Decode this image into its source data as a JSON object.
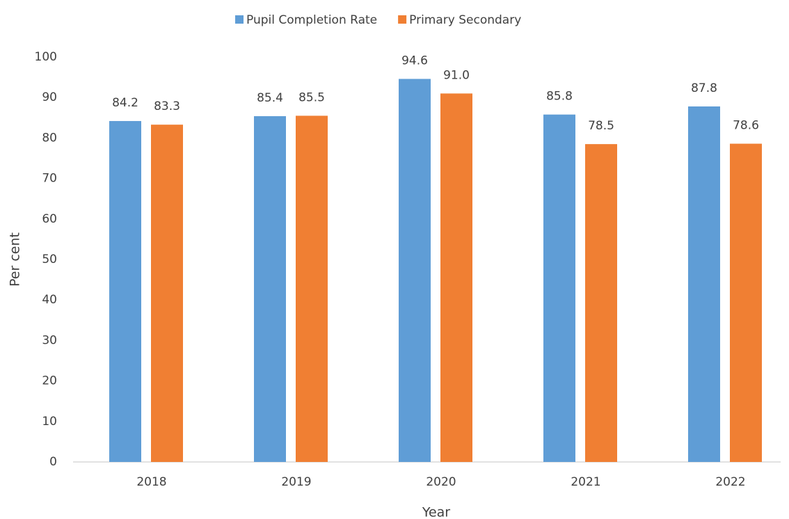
{
  "chart_data": {
    "type": "bar",
    "x_label": "Year",
    "y_label": "Per cent",
    "categories": [
      "2018",
      "2019",
      "2020",
      "2021",
      "2022"
    ],
    "series": [
      {
        "name": "Pupil Completion Rate",
        "color": "#5f9dd6",
        "values": [
          84.2,
          85.4,
          94.6,
          85.8,
          87.8
        ],
        "value_labels": [
          "84.2",
          "85.4",
          "94.6",
          "85.8",
          "87.8"
        ]
      },
      {
        "name": "Primary Secondary",
        "color": "#f07f33",
        "values": [
          83.3,
          85.5,
          91.0,
          78.5,
          78.6
        ],
        "value_labels": [
          "83.3",
          "85.5",
          "91.0",
          "78.5",
          "78.6"
        ]
      }
    ],
    "ylim": [
      0,
      100
    ],
    "yticks": [
      0,
      10,
      20,
      30,
      40,
      50,
      60,
      70,
      80,
      90,
      100
    ],
    "grid": false,
    "legend": "top"
  }
}
